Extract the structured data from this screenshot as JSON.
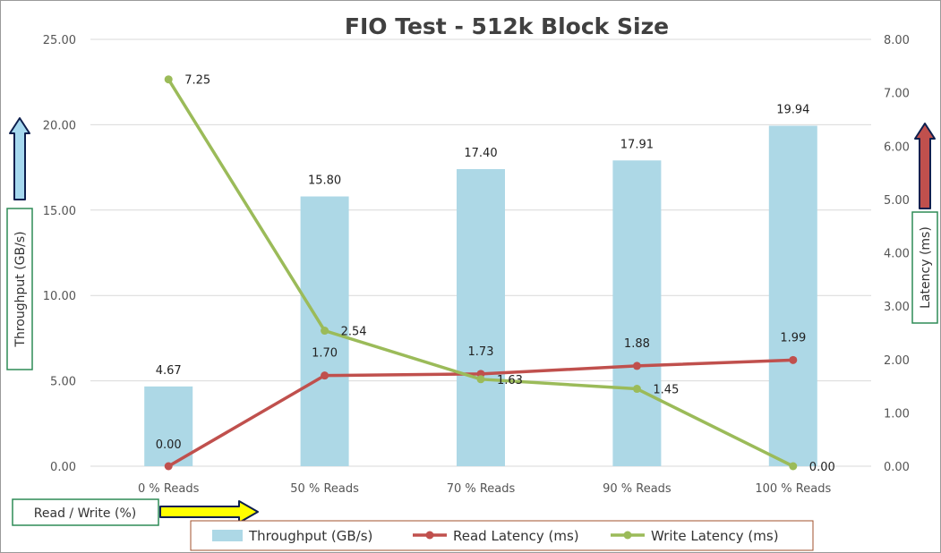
{
  "chart_data": {
    "type": "bar",
    "title": "FIO Test - 512k Block Size",
    "categories": [
      "0 % Reads",
      "50 % Reads",
      "70 % Reads",
      "90 % Reads",
      "100 % Reads"
    ],
    "xlabel": "Read / Write (%)",
    "ylabel": "Throughput (GB/s)",
    "y2label": "Latency (ms)",
    "ylim": [
      0,
      25
    ],
    "y2lim": [
      0,
      8
    ],
    "yticks": [
      "0.00",
      "5.00",
      "10.00",
      "15.00",
      "20.00",
      "25.00"
    ],
    "y2ticks": [
      "0.00",
      "1.00",
      "2.00",
      "3.00",
      "4.00",
      "5.00",
      "6.00",
      "7.00",
      "8.00"
    ],
    "grid": true,
    "legend_position": "bottom",
    "series": [
      {
        "name": "Throughput (GB/s)",
        "type": "bar",
        "axis": "left",
        "values": [
          4.67,
          15.8,
          17.4,
          17.91,
          19.94
        ],
        "labels": [
          "4.67",
          "15.80",
          "17.40",
          "17.91",
          "19.94"
        ],
        "color": "#add8e6"
      },
      {
        "name": "Read Latency (ms)",
        "type": "line",
        "axis": "right",
        "values": [
          0.0,
          1.7,
          1.73,
          1.88,
          1.99
        ],
        "labels": [
          "0.00",
          "1.70",
          "1.73",
          "1.88",
          "1.99"
        ],
        "color": "#c0504d"
      },
      {
        "name": "Write Latency (ms)",
        "type": "line",
        "axis": "right",
        "values": [
          7.25,
          2.54,
          1.63,
          1.45,
          0.0
        ],
        "labels": [
          "7.25",
          "2.54",
          "1.63",
          "1.45",
          "0.00"
        ],
        "color": "#9bbb59"
      }
    ]
  },
  "colors": {
    "grid": "#d9d9d9",
    "box_border": "#2e8b57",
    "legend_border": "#a0522d",
    "arrow_left_fill": "#a6d8ef",
    "arrow_right_fill": "#c0504d",
    "arrow_bottom_fill": "#ffff00",
    "arrow_outline": "#0d1f4e"
  },
  "icons": [
    "arrow-up-icon",
    "arrow-right-icon"
  ]
}
